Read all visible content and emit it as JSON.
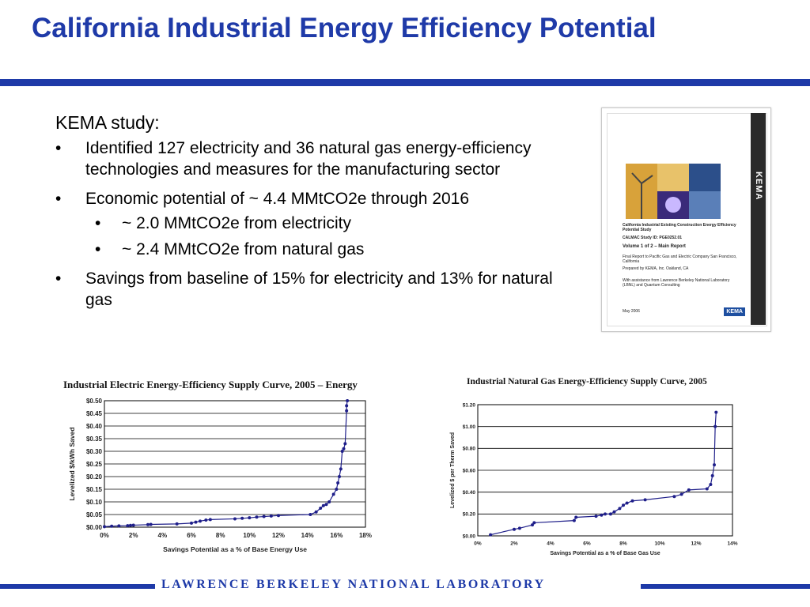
{
  "slide": {
    "title": "California Industrial Energy Efficiency Potential",
    "lead": "KEMA study:",
    "bullets": [
      "Identified 127 electricity and 36 natural gas energy-efficiency technologies and measures for the manufacturing sector",
      "Economic potential of ~ 4.4 MMtCO2e through 2016",
      "Savings from baseline of 15% for electricity and 13% for natural gas"
    ],
    "sub_bullets": [
      "~ 2.0 MMtCO2e from electricity",
      "~ 2.4 MMtCO2e from natural gas"
    ],
    "bullet_glyph": "•",
    "footer": "LAWRENCE BERKELEY NATIONAL LABORATORY",
    "brand_color": "#1e3aa8"
  },
  "cover": {
    "band_label": "KEMA",
    "line1": "California Industrial Existing Construction Energy Efficiency Potential Study",
    "line2": "CALMAC Study ID: PGE0252.01",
    "line3": "Volume 1 of 2 – Main Report",
    "line4": "Final Report to Pacific Gas and Electric Company San Francisco, California",
    "line5": "Prepared by KEMA, Inc. Oakland, CA",
    "line6": "With assistance from Lawrence Berkeley National Laboratory (LBNL) and Quantum Consulting",
    "line7": "May 2006",
    "logo": "KEMA"
  },
  "chart_data": [
    {
      "type": "line",
      "title": "Industrial Electric Energy-Efficiency Supply Curve, 2005 – Energy",
      "xlabel": "Savings Potential as a % of Base Energy Use",
      "ylabel": "Levelized $/kWh Saved",
      "xlim": [
        0,
        18
      ],
      "ylim": [
        0,
        0.5
      ],
      "xticks": [
        "0%",
        "2%",
        "4%",
        "6%",
        "8%",
        "10%",
        "12%",
        "14%",
        "16%",
        "18%"
      ],
      "yticks": [
        "$0.00",
        "$0.05",
        "$0.10",
        "$0.15",
        "$0.20",
        "$0.25",
        "$0.30",
        "$0.35",
        "$0.40",
        "$0.45",
        "$0.50"
      ],
      "grid": true,
      "color": "#1f1f8a",
      "series": [
        {
          "x": [
            0,
            0.5,
            1.0,
            1.6,
            1.8,
            2.0,
            3.0,
            3.2,
            5.0,
            6.0,
            6.3,
            6.6,
            7.0,
            7.3,
            9.0,
            9.5,
            10.0,
            10.5,
            11.0,
            11.5,
            12.0,
            14.2,
            14.6,
            14.9,
            15.1,
            15.3,
            15.5,
            15.8,
            16.0,
            16.1,
            16.2,
            16.3,
            16.4,
            16.5,
            16.6,
            16.7,
            16.7,
            16.75
          ],
          "y": [
            0.002,
            0.004,
            0.005,
            0.006,
            0.007,
            0.008,
            0.01,
            0.011,
            0.013,
            0.016,
            0.02,
            0.024,
            0.028,
            0.03,
            0.033,
            0.035,
            0.037,
            0.04,
            0.042,
            0.044,
            0.046,
            0.05,
            0.06,
            0.075,
            0.085,
            0.09,
            0.1,
            0.13,
            0.15,
            0.175,
            0.2,
            0.23,
            0.3,
            0.31,
            0.33,
            0.46,
            0.48,
            0.5
          ]
        }
      ]
    },
    {
      "type": "line",
      "title": "Industrial Natural Gas Energy-Efficiency Supply Curve, 2005",
      "xlabel": "Savings Potential as a % of Base Gas Use",
      "ylabel": "Levelized $ per Therm Saved",
      "xlim": [
        0,
        14
      ],
      "ylim": [
        0,
        1.2
      ],
      "xticks": [
        "0%",
        "2%",
        "4%",
        "6%",
        "8%",
        "10%",
        "12%",
        "14%"
      ],
      "yticks": [
        "$0.00",
        "$0.20",
        "$0.40",
        "$0.60",
        "$0.80",
        "$1.00",
        "$1.20"
      ],
      "grid": true,
      "color": "#1f1f8a",
      "series": [
        {
          "x": [
            0.7,
            2.0,
            2.3,
            3.0,
            3.1,
            5.3,
            5.4,
            6.5,
            6.8,
            7.0,
            7.3,
            7.5,
            7.8,
            8.0,
            8.2,
            8.5,
            9.2,
            10.8,
            11.2,
            11.6,
            12.6,
            12.8,
            12.9,
            13.0,
            13.05,
            13.1
          ],
          "y": [
            0.01,
            0.06,
            0.07,
            0.1,
            0.12,
            0.14,
            0.17,
            0.18,
            0.19,
            0.2,
            0.2,
            0.22,
            0.25,
            0.28,
            0.3,
            0.32,
            0.33,
            0.36,
            0.38,
            0.42,
            0.43,
            0.47,
            0.55,
            0.65,
            1.0,
            1.13
          ]
        }
      ]
    }
  ]
}
